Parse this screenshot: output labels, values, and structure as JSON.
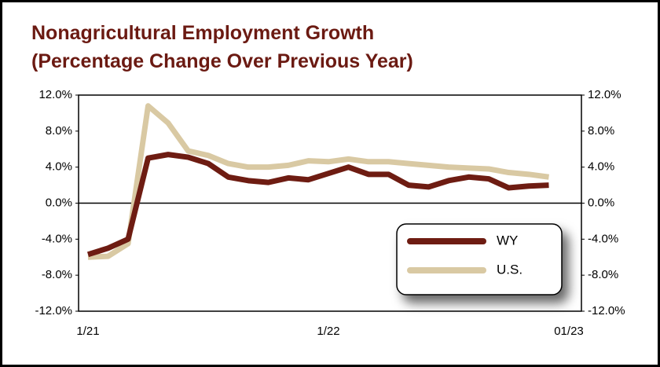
{
  "chart_data": {
    "type": "line",
    "title": [
      "Nonagricultural Employment Growth",
      "(Percentage Change Over Previous Year)"
    ],
    "categories": [
      "1/21",
      null,
      null,
      null,
      null,
      null,
      null,
      null,
      null,
      null,
      null,
      null,
      "1/22",
      null,
      null,
      null,
      null,
      null,
      null,
      null,
      null,
      null,
      null,
      null,
      "01/23"
    ],
    "series": [
      {
        "name": "WY",
        "color": "#6e1c12",
        "values": [
          -5.7,
          -5.0,
          -4.0,
          5.0,
          5.4,
          5.1,
          4.4,
          2.9,
          2.5,
          2.3,
          2.8,
          2.6,
          3.3,
          4.0,
          3.2,
          3.2,
          2.0,
          1.8,
          2.5,
          2.9,
          2.7,
          1.7,
          1.9,
          2.0,
          null
        ]
      },
      {
        "name": "U.S.",
        "color": "#d9c9a3",
        "values": [
          -6.0,
          -5.9,
          -4.5,
          10.8,
          8.9,
          5.8,
          5.3,
          4.4,
          4.0,
          4.0,
          4.2,
          4.7,
          4.6,
          4.9,
          4.6,
          4.6,
          4.4,
          4.2,
          4.0,
          3.9,
          3.8,
          3.4,
          3.2,
          2.9,
          null
        ]
      }
    ],
    "ylim": [
      -12,
      12
    ],
    "yticks": [
      {
        "value": -12,
        "label": "-12.0%"
      },
      {
        "value": -8,
        "label": "-8.0%"
      },
      {
        "value": -4,
        "label": "-4.0%"
      },
      {
        "value": 0,
        "label": "0.0%"
      },
      {
        "value": 4,
        "label": "4.0%"
      },
      {
        "value": 8,
        "label": "8.0%"
      },
      {
        "value": 12,
        "label": "12.0%"
      }
    ],
    "y2lim": [
      -12,
      12
    ],
    "y2ticks": [
      {
        "value": -12,
        "label": "-12.0%"
      },
      {
        "value": -8,
        "label": "-8.0%"
      },
      {
        "value": -4,
        "label": "-4.0%"
      },
      {
        "value": 0,
        "label": "0.0%"
      },
      {
        "value": 4,
        "label": "4.0%"
      },
      {
        "value": 8,
        "label": "8.0%"
      },
      {
        "value": 12,
        "label": "12.0%"
      }
    ]
  }
}
